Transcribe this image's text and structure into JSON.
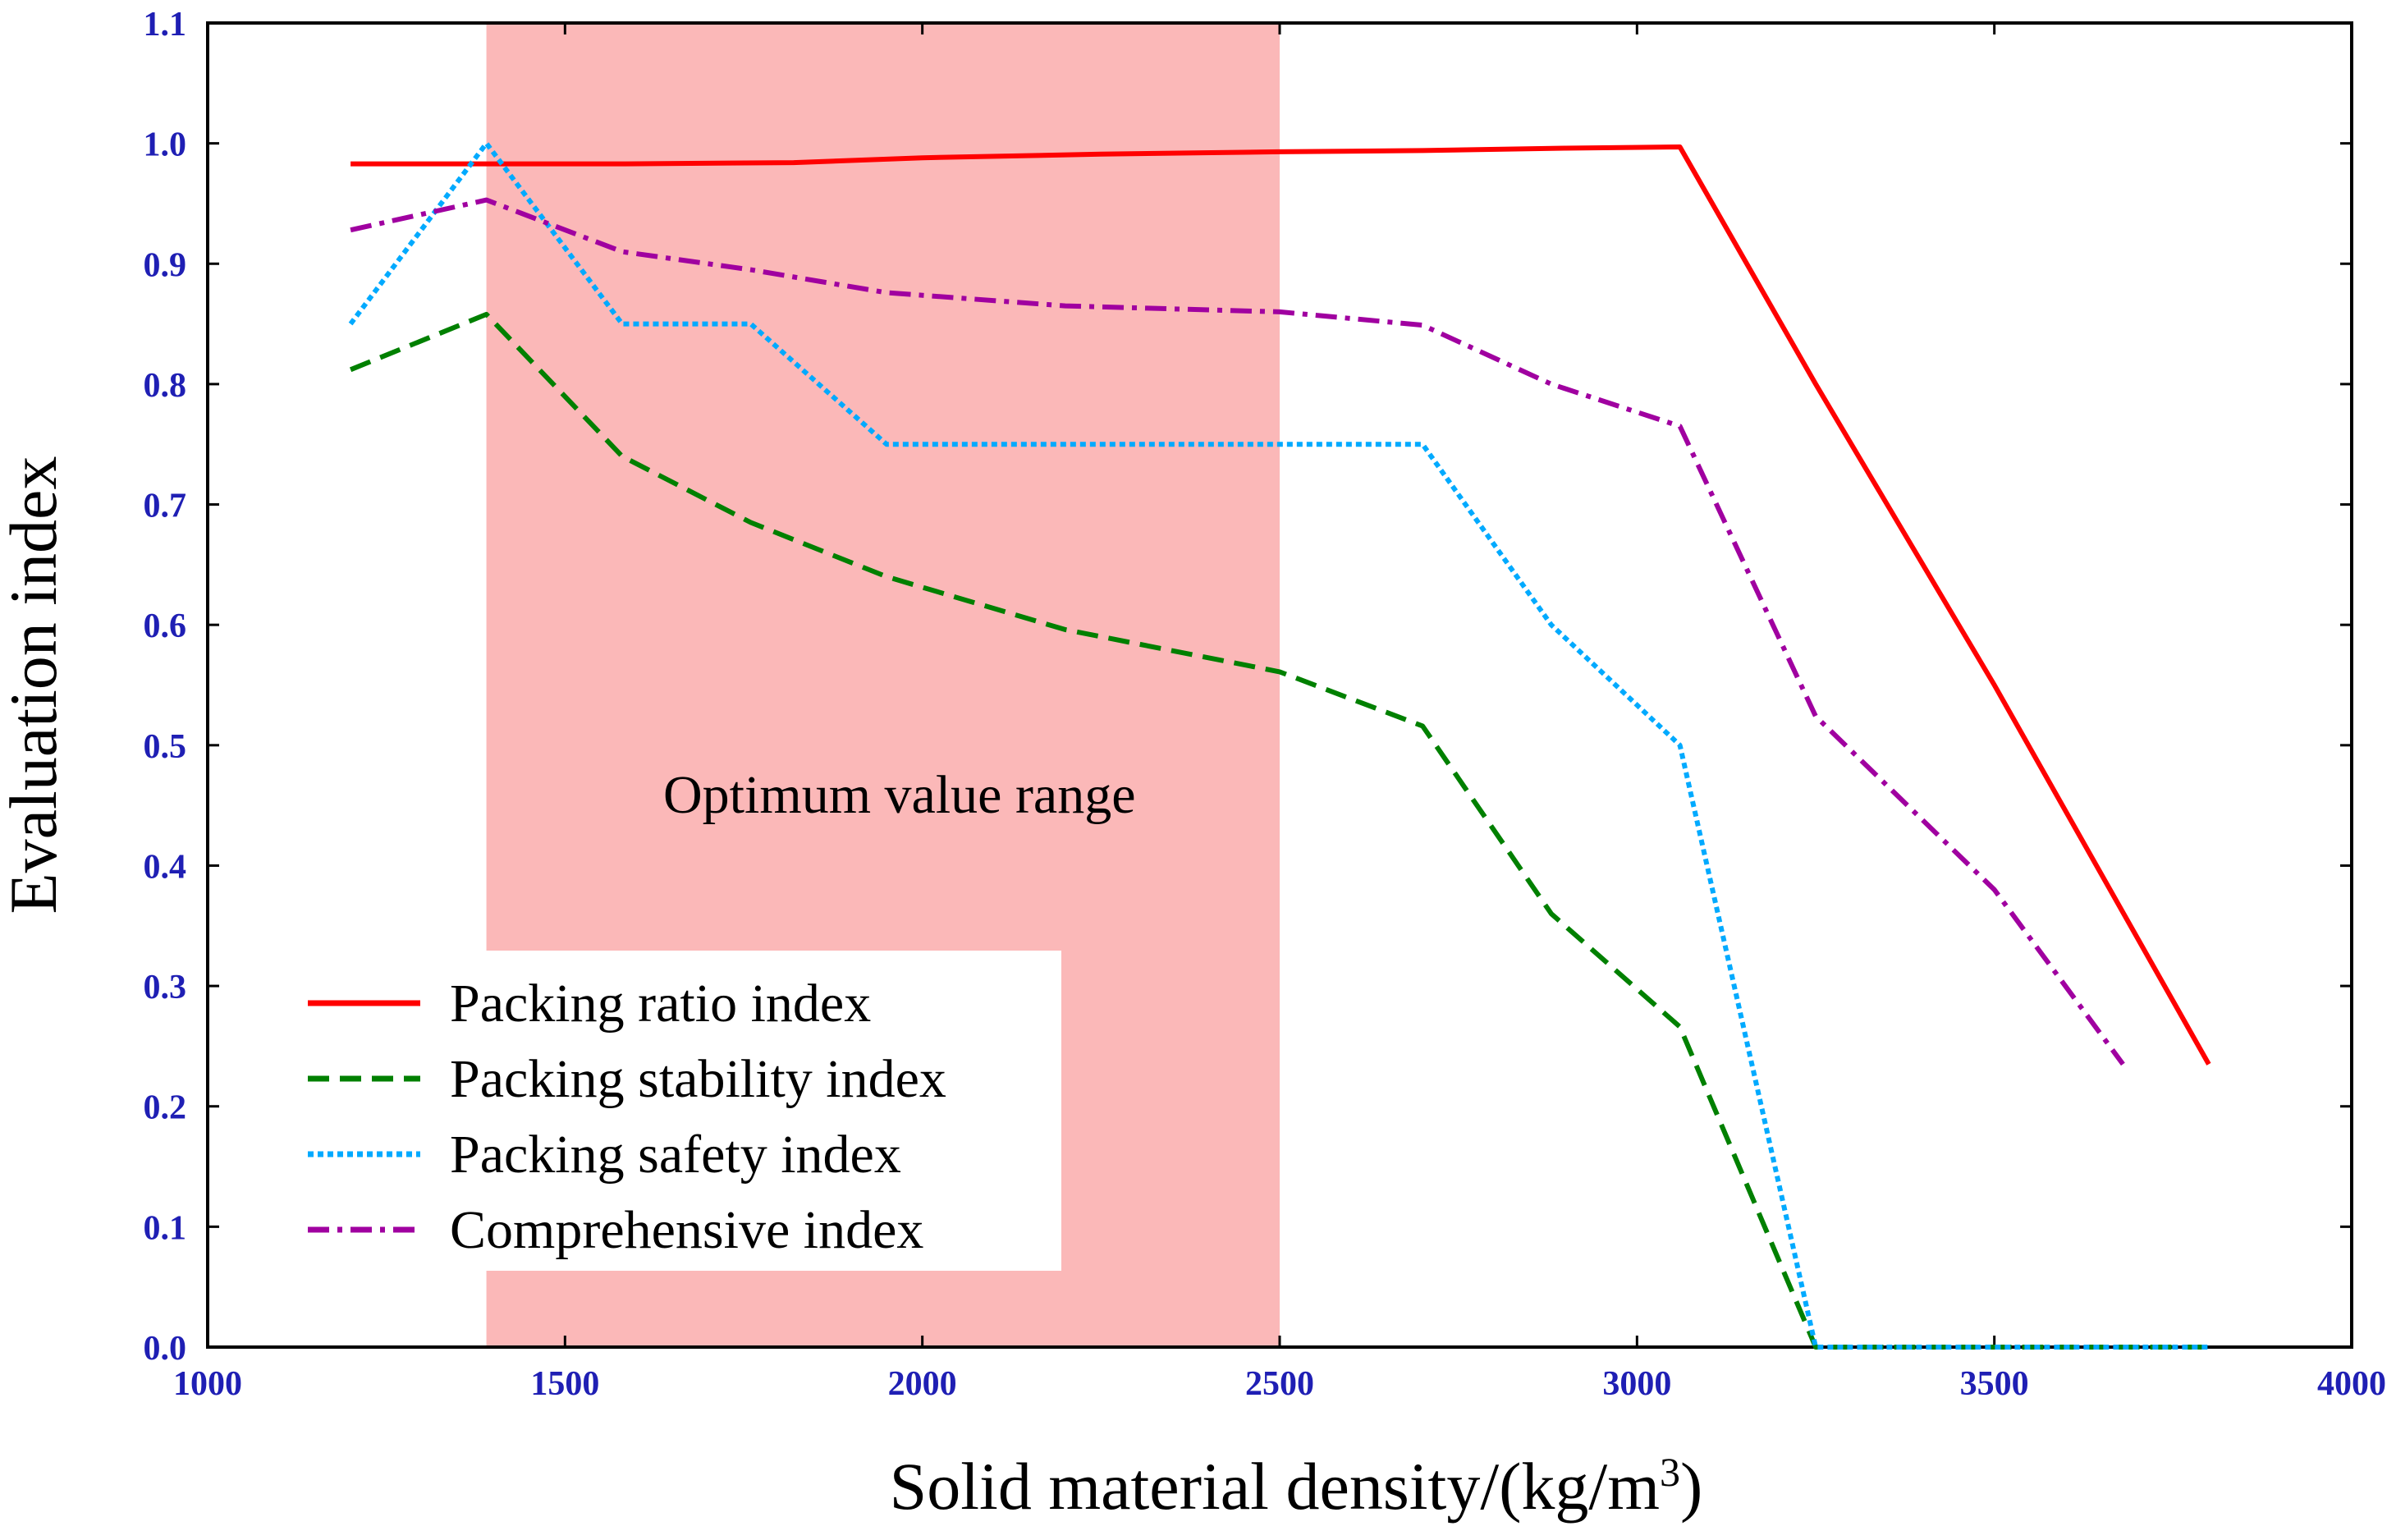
{
  "chart_data": {
    "type": "line",
    "title": "",
    "xlabel": "Solid material density/(kg/m",
    "xlabel_sup": "3",
    "xlabel_end": ")",
    "ylabel": "Evaluation index",
    "xlim": [
      1000,
      4000
    ],
    "ylim": [
      0.0,
      1.1
    ],
    "x_ticks": [
      1000,
      1500,
      2000,
      2500,
      3000,
      3500,
      4000
    ],
    "y_ticks": [
      0.0,
      0.1,
      0.2,
      0.3,
      0.4,
      0.5,
      0.6,
      0.7,
      0.8,
      0.9,
      1.0,
      1.1
    ],
    "y_tick_labels": [
      "0.0",
      "0.1",
      "0.2",
      "0.3",
      "0.4",
      "0.5",
      "0.6",
      "0.7",
      "0.8",
      "0.9",
      "1.0",
      "1.1"
    ],
    "grid": false,
    "legend_position": "bottom-left",
    "optimum_range": {
      "x_from": 1390,
      "x_to": 2500,
      "label": "Optimum value range",
      "color": "#fbb8b8"
    },
    "series": [
      {
        "name": "Packing ratio index",
        "color": "#ff0000",
        "style": "solid",
        "x": [
          1200,
          1390,
          1580,
          1820,
          2000,
          2250,
          2500,
          2700,
          2900,
          3060,
          3250,
          3500,
          3800
        ],
        "y": [
          0.983,
          0.983,
          0.983,
          0.984,
          0.988,
          0.991,
          0.993,
          0.994,
          0.996,
          0.997,
          0.8,
          0.55,
          0.235
        ]
      },
      {
        "name": "Packing stability index",
        "color": "#008000",
        "style": "dashed",
        "x": [
          1200,
          1390,
          1580,
          1760,
          1950,
          2200,
          2500,
          2700,
          2880,
          3060,
          3250,
          3500,
          3800
        ],
        "y": [
          0.812,
          0.858,
          0.74,
          0.685,
          0.64,
          0.596,
          0.561,
          0.516,
          0.36,
          0.266,
          0.0,
          0.0,
          0.0
        ]
      },
      {
        "name": "Packing safety index",
        "color": "#00aaff",
        "style": "dotted",
        "x": [
          1200,
          1390,
          1580,
          1760,
          1950,
          2200,
          2500,
          2700,
          2880,
          3060,
          3250,
          3500,
          3800
        ],
        "y": [
          0.85,
          1.0,
          0.85,
          0.85,
          0.75,
          0.75,
          0.75,
          0.75,
          0.6,
          0.5,
          0.0,
          0.0,
          0.0
        ]
      },
      {
        "name": "Comprehensive index",
        "color": "#a000a0",
        "style": "dashdot",
        "x": [
          1200,
          1390,
          1580,
          1760,
          1950,
          2200,
          2500,
          2700,
          2880,
          3060,
          3250,
          3500,
          3680
        ],
        "y": [
          0.928,
          0.953,
          0.91,
          0.895,
          0.876,
          0.865,
          0.86,
          0.849,
          0.8,
          0.765,
          0.524,
          0.38,
          0.235
        ]
      }
    ]
  }
}
